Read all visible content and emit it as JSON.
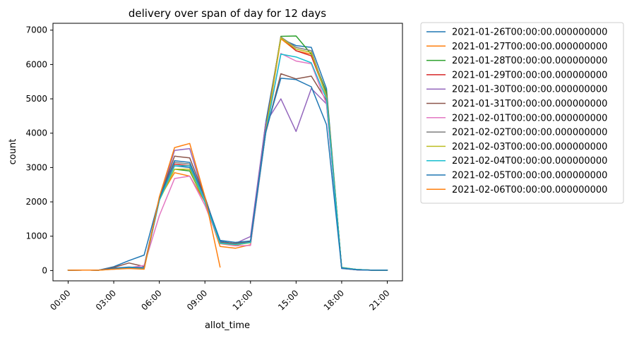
{
  "chart_data": {
    "type": "line",
    "title": "delivery over span of day for 12 days",
    "xlabel": "allot_time",
    "ylabel": "count",
    "xlim": [
      -1,
      22
    ],
    "ylim": [
      -300,
      7200
    ],
    "x_ticks": [
      0,
      3,
      6,
      9,
      12,
      15,
      18,
      21
    ],
    "x_tick_labels": [
      "00:00",
      "03:00",
      "06:00",
      "09:00",
      "12:00",
      "15:00",
      "18:00",
      "21:00"
    ],
    "y_ticks": [
      0,
      1000,
      2000,
      3000,
      4000,
      5000,
      6000,
      7000
    ],
    "y_tick_labels": [
      "0",
      "1000",
      "2000",
      "3000",
      "4000",
      "5000",
      "6000",
      "7000"
    ],
    "legend_position": "outside-right",
    "grid": false,
    "series": [
      {
        "name": "2021-01-26T00:00:00.000000000",
        "color": "#1f77b4",
        "points": [
          [
            0,
            10
          ],
          [
            1,
            15
          ],
          [
            2,
            10
          ],
          [
            3,
            110
          ],
          [
            4,
            290
          ],
          [
            5,
            450
          ],
          [
            6,
            2100
          ],
          [
            7,
            3050
          ],
          [
            8,
            3000
          ],
          [
            9,
            2000
          ],
          [
            10,
            850
          ],
          [
            11,
            780
          ],
          [
            12,
            860
          ],
          [
            13,
            4300
          ],
          [
            14,
            6750
          ],
          [
            15,
            6550
          ],
          [
            16,
            6500
          ],
          [
            17,
            5300
          ],
          [
            18,
            60
          ],
          [
            19,
            20
          ],
          [
            20,
            10
          ],
          [
            21,
            10
          ]
        ]
      },
      {
        "name": "2021-01-27T00:00:00.000000000",
        "color": "#ff7f0e",
        "points": [
          [
            0,
            10
          ],
          [
            1,
            15
          ],
          [
            2,
            10
          ],
          [
            3,
            40
          ],
          [
            4,
            70
          ],
          [
            5,
            60
          ],
          [
            6,
            2100
          ],
          [
            7,
            2850
          ],
          [
            8,
            2750
          ],
          [
            9,
            2000
          ],
          [
            10,
            700
          ],
          [
            11,
            650
          ],
          [
            12,
            750
          ],
          [
            13,
            4000
          ],
          [
            14,
            6750
          ],
          [
            15,
            6400
          ],
          [
            16,
            6300
          ],
          [
            17,
            5200
          ],
          [
            18,
            80
          ],
          [
            19,
            20
          ],
          [
            20,
            10
          ],
          [
            21,
            10
          ]
        ]
      },
      {
        "name": "2021-01-28T00:00:00.000000000",
        "color": "#2ca02c",
        "points": [
          [
            0,
            10
          ],
          [
            1,
            15
          ],
          [
            2,
            10
          ],
          [
            3,
            50
          ],
          [
            4,
            80
          ],
          [
            5,
            60
          ],
          [
            6,
            2050
          ],
          [
            7,
            2950
          ],
          [
            8,
            2900
          ],
          [
            9,
            2000
          ],
          [
            10,
            800
          ],
          [
            11,
            740
          ],
          [
            12,
            820
          ],
          [
            13,
            4100
          ],
          [
            14,
            6820
          ],
          [
            15,
            6830
          ],
          [
            16,
            6300
          ],
          [
            17,
            5200
          ],
          [
            18,
            90
          ],
          [
            19,
            30
          ],
          [
            20,
            10
          ],
          [
            21,
            10
          ]
        ]
      },
      {
        "name": "2021-01-29T00:00:00.000000000",
        "color": "#d62728",
        "points": [
          [
            0,
            10
          ],
          [
            1,
            15
          ],
          [
            2,
            10
          ],
          [
            3,
            60
          ],
          [
            4,
            80
          ],
          [
            5,
            70
          ],
          [
            6,
            2050
          ],
          [
            7,
            3100
          ],
          [
            8,
            3050
          ],
          [
            9,
            2000
          ],
          [
            10,
            820
          ],
          [
            11,
            760
          ],
          [
            12,
            840
          ],
          [
            13,
            4150
          ],
          [
            14,
            6800
          ],
          [
            15,
            6400
          ],
          [
            16,
            6250
          ],
          [
            17,
            5100
          ],
          [
            18,
            80
          ],
          [
            19,
            30
          ],
          [
            20,
            10
          ],
          [
            21,
            10
          ]
        ]
      },
      {
        "name": "2021-01-30T00:00:00.000000000",
        "color": "#9467bd",
        "points": [
          [
            0,
            10
          ],
          [
            1,
            15
          ],
          [
            2,
            10
          ],
          [
            3,
            70
          ],
          [
            4,
            90
          ],
          [
            5,
            90
          ],
          [
            6,
            2050
          ],
          [
            7,
            3500
          ],
          [
            8,
            3550
          ],
          [
            9,
            2100
          ],
          [
            10,
            820
          ],
          [
            11,
            790
          ],
          [
            12,
            990
          ],
          [
            13,
            4300
          ],
          [
            14,
            5000
          ],
          [
            15,
            4050
          ],
          [
            16,
            5300
          ],
          [
            17,
            4850
          ],
          [
            18,
            70
          ],
          [
            19,
            20
          ],
          [
            20,
            10
          ],
          [
            21,
            10
          ]
        ]
      },
      {
        "name": "2021-01-31T00:00:00.000000000",
        "color": "#8c564b",
        "points": [
          [
            0,
            10
          ],
          [
            1,
            15
          ],
          [
            2,
            10
          ],
          [
            3,
            90
          ],
          [
            4,
            220
          ],
          [
            5,
            120
          ],
          [
            6,
            2100
          ],
          [
            7,
            3330
          ],
          [
            8,
            3280
          ],
          [
            9,
            2150
          ],
          [
            10,
            820
          ],
          [
            11,
            790
          ],
          [
            12,
            860
          ],
          [
            13,
            4000
          ],
          [
            14,
            5730
          ],
          [
            15,
            5580
          ],
          [
            16,
            5660
          ],
          [
            17,
            4950
          ],
          [
            18,
            70
          ],
          [
            19,
            20
          ],
          [
            20,
            10
          ],
          [
            21,
            10
          ]
        ]
      },
      {
        "name": "2021-02-01T00:00:00.000000000",
        "color": "#e377c2",
        "points": [
          [
            0,
            10
          ],
          [
            1,
            15
          ],
          [
            2,
            10
          ],
          [
            3,
            60
          ],
          [
            4,
            80
          ],
          [
            5,
            150
          ],
          [
            6,
            1600
          ],
          [
            7,
            2680
          ],
          [
            8,
            2750
          ],
          [
            9,
            1900
          ],
          [
            10,
            780
          ],
          [
            11,
            720
          ],
          [
            12,
            730
          ],
          [
            13,
            4000
          ],
          [
            14,
            6320
          ],
          [
            15,
            6100
          ],
          [
            16,
            6020
          ],
          [
            17,
            4850
          ],
          [
            18,
            70
          ],
          [
            19,
            20
          ],
          [
            20,
            10
          ],
          [
            21,
            10
          ]
        ]
      },
      {
        "name": "2021-02-02T00:00:00.000000000",
        "color": "#7f7f7f",
        "points": [
          [
            0,
            10
          ],
          [
            1,
            15
          ],
          [
            2,
            10
          ],
          [
            3,
            60
          ],
          [
            4,
            90
          ],
          [
            5,
            70
          ],
          [
            6,
            2050
          ],
          [
            7,
            3150
          ],
          [
            8,
            3100
          ],
          [
            9,
            2000
          ],
          [
            10,
            800
          ],
          [
            11,
            760
          ],
          [
            12,
            820
          ],
          [
            13,
            4100
          ],
          [
            14,
            6800
          ],
          [
            15,
            6500
          ],
          [
            16,
            6400
          ],
          [
            17,
            5100
          ],
          [
            18,
            80
          ],
          [
            19,
            30
          ],
          [
            20,
            10
          ],
          [
            21,
            10
          ]
        ]
      },
      {
        "name": "2021-02-03T00:00:00.000000000",
        "color": "#bcbd22",
        "points": [
          [
            0,
            10
          ],
          [
            1,
            15
          ],
          [
            2,
            10
          ],
          [
            3,
            50
          ],
          [
            4,
            70
          ],
          [
            5,
            50
          ],
          [
            6,
            2050
          ],
          [
            7,
            2950
          ],
          [
            8,
            2950
          ],
          [
            9,
            2000
          ],
          [
            10,
            790
          ],
          [
            11,
            750
          ],
          [
            12,
            810
          ],
          [
            13,
            4050
          ],
          [
            14,
            6780
          ],
          [
            15,
            6450
          ],
          [
            16,
            6350
          ],
          [
            17,
            5050
          ],
          [
            18,
            80
          ],
          [
            19,
            30
          ],
          [
            20,
            10
          ],
          [
            21,
            10
          ]
        ]
      },
      {
        "name": "2021-02-04T00:00:00.000000000",
        "color": "#17becf",
        "points": [
          [
            0,
            10
          ],
          [
            1,
            15
          ],
          [
            2,
            10
          ],
          [
            3,
            50
          ],
          [
            4,
            70
          ],
          [
            5,
            50
          ],
          [
            6,
            2050
          ],
          [
            7,
            3050
          ],
          [
            8,
            3050
          ],
          [
            9,
            2000
          ],
          [
            10,
            800
          ],
          [
            11,
            760
          ],
          [
            12,
            820
          ],
          [
            13,
            4000
          ],
          [
            14,
            6300
          ],
          [
            15,
            6220
          ],
          [
            16,
            6050
          ],
          [
            17,
            5000
          ],
          [
            18,
            80
          ],
          [
            19,
            30
          ],
          [
            20,
            10
          ],
          [
            21,
            10
          ]
        ]
      },
      {
        "name": "2021-02-05T00:00:00.000000000",
        "color": "#1f77b4",
        "points": [
          [
            0,
            10
          ],
          [
            1,
            15
          ],
          [
            2,
            10
          ],
          [
            3,
            70
          ],
          [
            4,
            100
          ],
          [
            5,
            80
          ],
          [
            6,
            2100
          ],
          [
            7,
            3200
          ],
          [
            8,
            3150
          ],
          [
            9,
            2100
          ],
          [
            10,
            880
          ],
          [
            11,
            820
          ],
          [
            12,
            860
          ],
          [
            13,
            4050
          ],
          [
            14,
            5600
          ],
          [
            15,
            5560
          ],
          [
            16,
            5350
          ],
          [
            17,
            4250
          ],
          [
            18,
            70
          ],
          [
            19,
            20
          ],
          [
            20,
            10
          ],
          [
            21,
            10
          ]
        ]
      },
      {
        "name": "2021-02-06T00:00:00.000000000",
        "color": "#ff7f0e",
        "points": [
          [
            0,
            10
          ],
          [
            1,
            15
          ],
          [
            2,
            10
          ],
          [
            3,
            40
          ],
          [
            4,
            60
          ],
          [
            5,
            40
          ],
          [
            6,
            2150
          ],
          [
            7,
            3580
          ],
          [
            8,
            3700
          ],
          [
            9,
            2150
          ],
          [
            10,
            100
          ]
        ]
      }
    ]
  }
}
